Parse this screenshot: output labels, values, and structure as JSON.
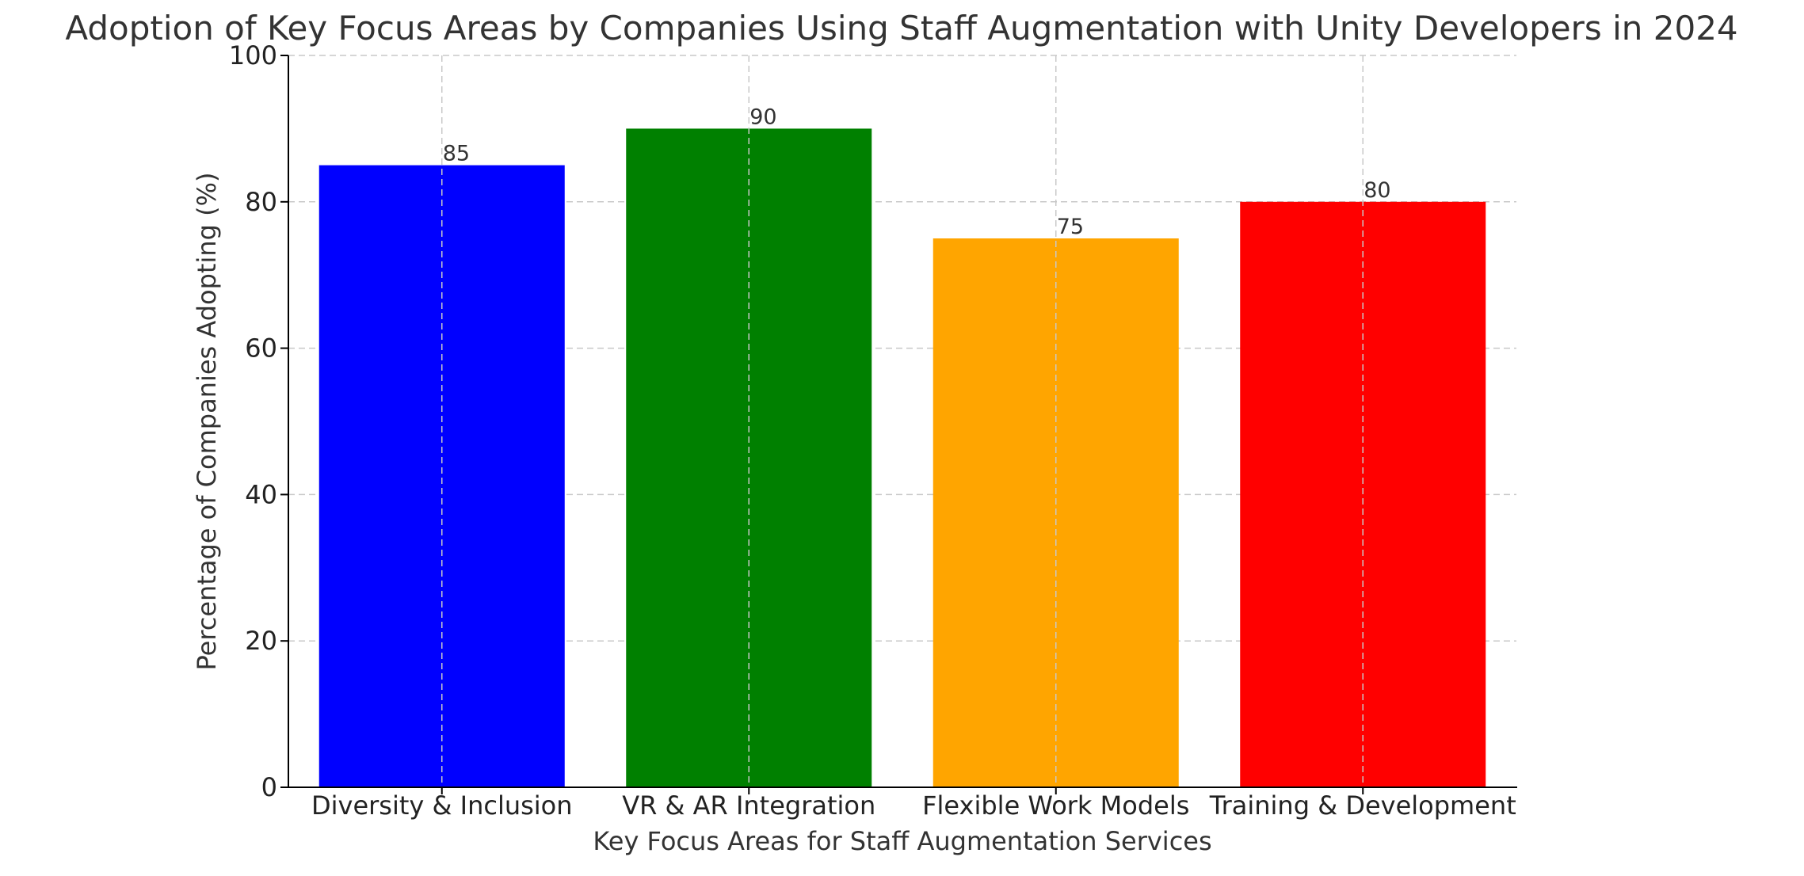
{
  "chart_data": {
    "type": "bar",
    "title": "Adoption of Key Focus Areas by Companies Using Staff Augmentation with Unity Developers in 2024",
    "xlabel": "Key Focus Areas for Staff Augmentation Services",
    "ylabel": "Percentage of Companies Adopting (%)",
    "categories": [
      "Diversity & Inclusion",
      "VR & AR Integration",
      "Flexible Work Models",
      "Training & Development"
    ],
    "values": [
      85,
      90,
      75,
      80
    ],
    "data_labels": [
      "85",
      "90",
      "75",
      "80"
    ],
    "colors": [
      "#0000ff",
      "#008000",
      "#ffa500",
      "#ff0000"
    ],
    "ylim": [
      0,
      100
    ],
    "yticks": [
      0,
      20,
      40,
      60,
      80,
      100
    ],
    "ytick_labels": [
      "0",
      "20",
      "40",
      "60",
      "80",
      "100"
    ],
    "grid": true,
    "legend": false
  }
}
